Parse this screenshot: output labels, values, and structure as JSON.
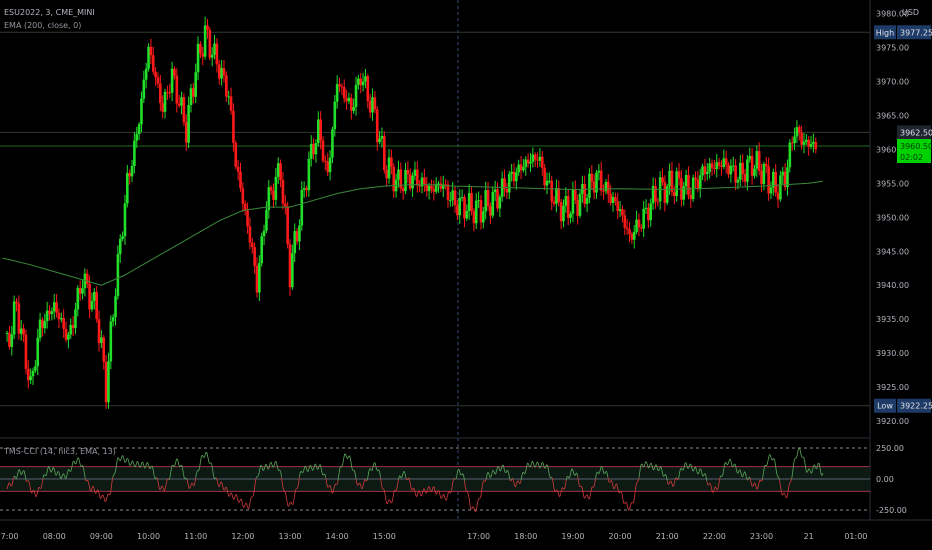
{
  "header": {
    "symbol_line": "ESU2022, 3, CME_MINI",
    "ema_line": "EMA (200, close, 0)",
    "currency": "USD"
  },
  "indicator": {
    "label": "TMS-CCI (14, hlc3, EMA, 13)"
  },
  "tags": {
    "high_label": "High",
    "high_value": "3977.25",
    "low_label": "Low",
    "low_value": "3922.25",
    "line_value": "3962.50",
    "last_value": "3960.50",
    "countdown": "02:02"
  },
  "colors": {
    "up": "#22e02a",
    "down": "#ff1a1a",
    "ema": "#3a8a3a",
    "cci": "#5aa85a",
    "cci_neg": "#d23b3b",
    "last_tag": "#00d100",
    "tag_bg": "#1e3a66"
  },
  "chart_data": [
    {
      "type": "candlestick",
      "y_axis_ticks": [
        "3980.00",
        "3975.00",
        "3970.00",
        "3965.00",
        "3960.00",
        "3955.00",
        "3950.00",
        "3945.00",
        "3940.00",
        "3935.00",
        "3930.00",
        "3925.00",
        "3920.00"
      ],
      "x_axis_ticks": [
        "07:00",
        "08:00",
        "09:00",
        "10:00",
        "11:00",
        "12:00",
        "13:00",
        "14:00",
        "15:00",
        "17:00",
        "18:00",
        "19:00",
        "20:00",
        "21:00",
        "22:00",
        "23:00",
        "21",
        "01:00"
      ],
      "ylim": [
        3917.5,
        3982
      ],
      "high": 3977.25,
      "low": 3922.25,
      "last": 3960.5,
      "path": [
        [
          7.0,
          3931
        ],
        [
          7.2,
          3937
        ],
        [
          7.5,
          3925
        ],
        [
          7.7,
          3934
        ],
        [
          8.0,
          3937
        ],
        [
          8.3,
          3932
        ],
        [
          8.6,
          3941
        ],
        [
          8.9,
          3936
        ],
        [
          9.1,
          3925
        ],
        [
          9.3,
          3940
        ],
        [
          9.55,
          3955
        ],
        [
          9.75,
          3962
        ],
        [
          10.0,
          3975
        ],
        [
          10.3,
          3966
        ],
        [
          10.5,
          3971
        ],
        [
          10.8,
          3963
        ],
        [
          11.0,
          3972
        ],
        [
          11.2,
          3977
        ],
        [
          11.5,
          3972
        ],
        [
          11.7,
          3968
        ],
        [
          11.85,
          3958
        ],
        [
          12.2,
          3945
        ],
        [
          12.3,
          3940
        ],
        [
          12.5,
          3952
        ],
        [
          12.8,
          3957
        ],
        [
          13.0,
          3942
        ],
        [
          13.2,
          3950
        ],
        [
          13.4,
          3958
        ],
        [
          13.6,
          3963
        ],
        [
          13.8,
          3956
        ],
        [
          14.0,
          3970
        ],
        [
          14.3,
          3966
        ],
        [
          14.5,
          3971
        ],
        [
          14.8,
          3965
        ],
        [
          15.0,
          3958
        ],
        [
          15.3,
          3955
        ],
        [
          15.6,
          3956
        ],
        [
          16.0,
          3954
        ],
        [
          16.2,
          3955
        ],
        [
          16.5,
          3952
        ],
        [
          17.0,
          3951
        ],
        [
          17.4,
          3953
        ],
        [
          17.7,
          3956
        ],
        [
          18.0,
          3958
        ],
        [
          18.25,
          3959
        ],
        [
          18.5,
          3954
        ],
        [
          18.8,
          3951
        ],
        [
          19.2,
          3953
        ],
        [
          19.5,
          3956
        ],
        [
          19.8,
          3953
        ],
        [
          20.0,
          3951
        ],
        [
          20.2,
          3947
        ],
        [
          20.5,
          3950
        ],
        [
          20.8,
          3954
        ],
        [
          21.2,
          3955
        ],
        [
          21.5,
          3954
        ],
        [
          21.8,
          3957
        ],
        [
          22.2,
          3958
        ],
        [
          22.5,
          3956
        ],
        [
          22.8,
          3958
        ],
        [
          23.0,
          3957
        ],
        [
          23.3,
          3954
        ],
        [
          23.5,
          3956
        ],
        [
          23.7,
          3963
        ],
        [
          23.9,
          3961
        ],
        [
          24.2,
          3960.5
        ]
      ],
      "ema_points": [
        [
          6.9,
          3944
        ],
        [
          7.5,
          3943
        ],
        [
          8.0,
          3942
        ],
        [
          8.5,
          3941
        ],
        [
          9.0,
          3940
        ],
        [
          9.5,
          3941.5
        ],
        [
          10.0,
          3943.5
        ],
        [
          10.5,
          3945.5
        ],
        [
          11.0,
          3947.5
        ],
        [
          11.5,
          3949.5
        ],
        [
          12.0,
          3951
        ],
        [
          12.5,
          3951.5
        ],
        [
          13.0,
          3951.5
        ],
        [
          13.5,
          3952.5
        ],
        [
          14.0,
          3953.5
        ],
        [
          14.5,
          3954.2
        ],
        [
          15.0,
          3954.6
        ],
        [
          15.5,
          3954.8
        ],
        [
          16.0,
          3954.8
        ],
        [
          16.5,
          3954.6
        ],
        [
          17.0,
          3954.5
        ],
        [
          18.0,
          3954.3
        ],
        [
          19.0,
          3954.1
        ],
        [
          20.0,
          3954.2
        ],
        [
          21.0,
          3954.1
        ],
        [
          22.0,
          3954.3
        ],
        [
          23.0,
          3954.6
        ],
        [
          24.0,
          3955
        ],
        [
          24.3,
          3955.3
        ]
      ]
    },
    {
      "type": "line",
      "y_axis_ticks": [
        "250.00",
        "0.00",
        "-250.00"
      ],
      "ylim": [
        -330,
        330
      ],
      "levels": [
        250,
        100,
        0,
        -100,
        -250
      ],
      "points": [
        [
          7.0,
          -60
        ],
        [
          7.3,
          60
        ],
        [
          7.6,
          -120
        ],
        [
          7.9,
          80
        ],
        [
          8.2,
          20
        ],
        [
          8.5,
          150
        ],
        [
          8.8,
          -80
        ],
        [
          9.1,
          -160
        ],
        [
          9.4,
          170
        ],
        [
          9.7,
          120
        ],
        [
          10.0,
          110
        ],
        [
          10.3,
          -80
        ],
        [
          10.6,
          140
        ],
        [
          10.9,
          -60
        ],
        [
          11.2,
          200
        ],
        [
          11.5,
          -40
        ],
        [
          11.8,
          -140
        ],
        [
          12.1,
          -220
        ],
        [
          12.4,
          90
        ],
        [
          12.7,
          120
        ],
        [
          13.0,
          -210
        ],
        [
          13.3,
          80
        ],
        [
          13.6,
          100
        ],
        [
          13.9,
          -90
        ],
        [
          14.2,
          190
        ],
        [
          14.5,
          -60
        ],
        [
          14.8,
          110
        ],
        [
          15.1,
          -190
        ],
        [
          15.4,
          40
        ],
        [
          15.7,
          -120
        ],
        [
          16.0,
          -80
        ],
        [
          16.3,
          -150
        ],
        [
          16.6,
          60
        ],
        [
          16.9,
          -250
        ],
        [
          17.2,
          30
        ],
        [
          17.5,
          90
        ],
        [
          17.8,
          -40
        ],
        [
          18.1,
          120
        ],
        [
          18.4,
          110
        ],
        [
          18.7,
          -120
        ],
        [
          19.0,
          60
        ],
        [
          19.3,
          -150
        ],
        [
          19.6,
          80
        ],
        [
          19.9,
          -60
        ],
        [
          20.2,
          -230
        ],
        [
          20.5,
          120
        ],
        [
          20.8,
          90
        ],
        [
          21.1,
          -40
        ],
        [
          21.4,
          110
        ],
        [
          21.7,
          60
        ],
        [
          22.0,
          -90
        ],
        [
          22.3,
          140
        ],
        [
          22.6,
          40
        ],
        [
          22.9,
          -60
        ],
        [
          23.2,
          180
        ],
        [
          23.5,
          -140
        ],
        [
          23.8,
          230
        ],
        [
          24.0,
          60
        ],
        [
          24.2,
          110
        ],
        [
          24.3,
          40
        ]
      ]
    }
  ]
}
